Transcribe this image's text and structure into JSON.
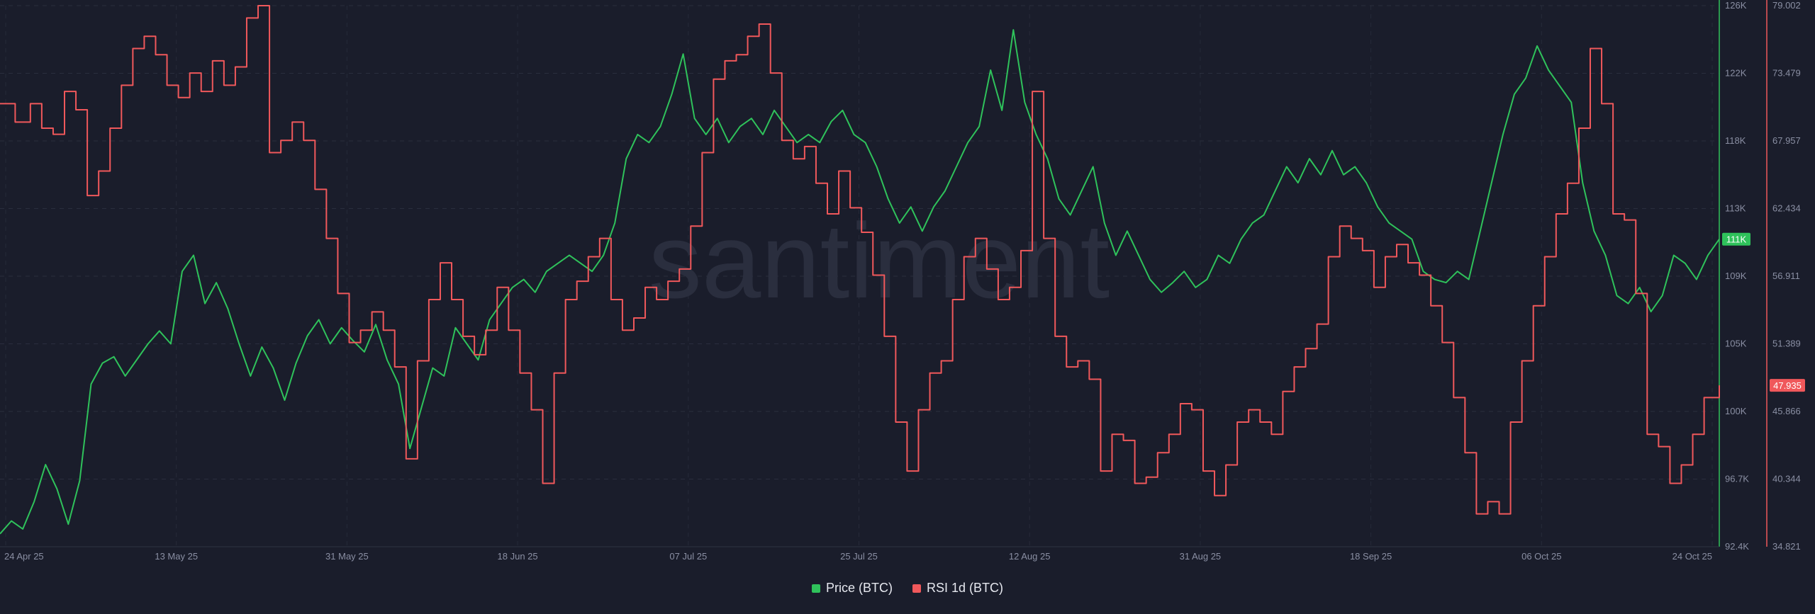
{
  "chart_data": {
    "type": "line",
    "watermark": "santiment",
    "x_ticks": [
      "24 Apr 25",
      "13 May 25",
      "31 May 25",
      "18 Jun 25",
      "07 Jul 25",
      "25 Jul 25",
      "12 Aug 25",
      "31 Aug 25",
      "18 Sep 25",
      "06 Oct 25",
      "24 Oct 25"
    ],
    "x_domain": [
      "24 Apr 25",
      "24 Oct 25"
    ],
    "grid": true,
    "legend_position": "bottom-center",
    "series": [
      {
        "name": "Price (BTC)",
        "color": "#2fc25b",
        "axis": "right-inner",
        "ylim": [
          92.4,
          126
        ],
        "unit": "K",
        "last_value_label": "111K",
        "points": [
          [
            0,
            93.2
          ],
          [
            3,
            94.0
          ],
          [
            6,
            93.5
          ],
          [
            9,
            95.2
          ],
          [
            12,
            97.5
          ],
          [
            15,
            96.0
          ],
          [
            18,
            93.8
          ],
          [
            21,
            96.5
          ],
          [
            24,
            102.5
          ],
          [
            27,
            103.8
          ],
          [
            30,
            104.2
          ],
          [
            33,
            103.0
          ],
          [
            36,
            104.0
          ],
          [
            39,
            105.0
          ],
          [
            42,
            105.8
          ],
          [
            45,
            105.0
          ],
          [
            48,
            109.5
          ],
          [
            51,
            110.5
          ],
          [
            54,
            107.5
          ],
          [
            57,
            108.8
          ],
          [
            60,
            107.2
          ],
          [
            63,
            105.0
          ],
          [
            66,
            103.0
          ],
          [
            69,
            104.8
          ],
          [
            72,
            103.5
          ],
          [
            75,
            101.5
          ],
          [
            78,
            103.8
          ],
          [
            81,
            105.5
          ],
          [
            84,
            106.5
          ],
          [
            87,
            105.0
          ],
          [
            90,
            106.0
          ],
          [
            93,
            105.2
          ],
          [
            96,
            104.5
          ],
          [
            99,
            106.2
          ],
          [
            102,
            104.0
          ],
          [
            105,
            102.5
          ],
          [
            108,
            98.5
          ],
          [
            111,
            101.0
          ],
          [
            114,
            103.5
          ],
          [
            117,
            103.0
          ],
          [
            120,
            106.0
          ],
          [
            123,
            105.0
          ],
          [
            126,
            104.0
          ],
          [
            129,
            106.5
          ],
          [
            132,
            107.5
          ],
          [
            135,
            108.5
          ],
          [
            138,
            109.0
          ],
          [
            141,
            108.2
          ],
          [
            144,
            109.5
          ],
          [
            147,
            110.0
          ],
          [
            150,
            110.5
          ],
          [
            153,
            110.0
          ],
          [
            156,
            109.5
          ],
          [
            159,
            110.5
          ],
          [
            162,
            112.5
          ],
          [
            165,
            116.5
          ],
          [
            168,
            118.0
          ],
          [
            171,
            117.5
          ],
          [
            174,
            118.5
          ],
          [
            177,
            120.5
          ],
          [
            180,
            123.0
          ],
          [
            183,
            119.0
          ],
          [
            186,
            118.0
          ],
          [
            189,
            119.0
          ],
          [
            192,
            117.5
          ],
          [
            195,
            118.5
          ],
          [
            198,
            119.0
          ],
          [
            201,
            118.0
          ],
          [
            204,
            119.5
          ],
          [
            207,
            118.5
          ],
          [
            210,
            117.5
          ],
          [
            213,
            118.0
          ],
          [
            216,
            117.5
          ],
          [
            219,
            118.8
          ],
          [
            222,
            119.5
          ],
          [
            225,
            118.0
          ],
          [
            228,
            117.5
          ],
          [
            231,
            116.0
          ],
          [
            234,
            114.0
          ],
          [
            237,
            112.5
          ],
          [
            240,
            113.5
          ],
          [
            243,
            112.0
          ],
          [
            246,
            113.5
          ],
          [
            249,
            114.5
          ],
          [
            252,
            116.0
          ],
          [
            255,
            117.5
          ],
          [
            258,
            118.5
          ],
          [
            261,
            122.0
          ],
          [
            264,
            119.5
          ],
          [
            267,
            124.5
          ],
          [
            270,
            120.0
          ],
          [
            273,
            118.0
          ],
          [
            276,
            116.5
          ],
          [
            279,
            114.0
          ],
          [
            282,
            113.0
          ],
          [
            285,
            114.5
          ],
          [
            288,
            116.0
          ],
          [
            291,
            112.5
          ],
          [
            294,
            110.5
          ],
          [
            297,
            112.0
          ],
          [
            300,
            110.5
          ],
          [
            303,
            109.0
          ],
          [
            306,
            108.2
          ],
          [
            309,
            108.8
          ],
          [
            312,
            109.5
          ],
          [
            315,
            108.5
          ],
          [
            318,
            109.0
          ],
          [
            321,
            110.5
          ],
          [
            324,
            110.0
          ],
          [
            327,
            111.5
          ],
          [
            330,
            112.5
          ],
          [
            333,
            113.0
          ],
          [
            336,
            114.5
          ],
          [
            339,
            116.0
          ],
          [
            342,
            115.0
          ],
          [
            345,
            116.5
          ],
          [
            348,
            115.5
          ],
          [
            351,
            117.0
          ],
          [
            354,
            115.5
          ],
          [
            357,
            116.0
          ],
          [
            360,
            115.0
          ],
          [
            363,
            113.5
          ],
          [
            366,
            112.5
          ],
          [
            369,
            112.0
          ],
          [
            372,
            111.5
          ],
          [
            375,
            109.5
          ],
          [
            378,
            109.0
          ],
          [
            381,
            108.8
          ],
          [
            384,
            109.5
          ],
          [
            387,
            109.0
          ],
          [
            390,
            112.0
          ],
          [
            393,
            115.0
          ],
          [
            396,
            118.0
          ],
          [
            399,
            120.5
          ],
          [
            402,
            121.5
          ],
          [
            405,
            123.5
          ],
          [
            408,
            122.0
          ],
          [
            411,
            121.0
          ],
          [
            414,
            120.0
          ],
          [
            417,
            115.0
          ],
          [
            420,
            112.0
          ],
          [
            423,
            110.5
          ],
          [
            426,
            108.0
          ],
          [
            429,
            107.5
          ],
          [
            432,
            108.5
          ],
          [
            435,
            107.0
          ],
          [
            438,
            108.0
          ],
          [
            441,
            110.5
          ],
          [
            444,
            110.0
          ],
          [
            447,
            109.0
          ],
          [
            450,
            110.5
          ],
          [
            453,
            111.5
          ]
        ]
      },
      {
        "name": "RSI 1d (BTC)",
        "color": "#f0585b",
        "axis": "right-outer",
        "ylim": [
          34.821,
          79.002
        ],
        "unit": "",
        "last_value_label": "47.935",
        "points": [
          [
            0,
            71.0
          ],
          [
            4,
            69.5
          ],
          [
            8,
            71.0
          ],
          [
            11,
            69.0
          ],
          [
            14,
            68.5
          ],
          [
            17,
            72.0
          ],
          [
            20,
            70.5
          ],
          [
            23,
            63.5
          ],
          [
            26,
            65.5
          ],
          [
            29,
            69.0
          ],
          [
            32,
            72.5
          ],
          [
            35,
            75.5
          ],
          [
            38,
            76.5
          ],
          [
            41,
            75.0
          ],
          [
            44,
            72.5
          ],
          [
            47,
            71.5
          ],
          [
            50,
            73.5
          ],
          [
            53,
            72.0
          ],
          [
            56,
            74.5
          ],
          [
            59,
            72.5
          ],
          [
            62,
            74.0
          ],
          [
            65,
            78.0
          ],
          [
            68,
            79.0
          ],
          [
            71,
            67.0
          ],
          [
            74,
            68.0
          ],
          [
            77,
            69.5
          ],
          [
            80,
            68.0
          ],
          [
            83,
            64.0
          ],
          [
            86,
            60.0
          ],
          [
            89,
            55.5
          ],
          [
            92,
            51.5
          ],
          [
            95,
            52.5
          ],
          [
            98,
            54.0
          ],
          [
            101,
            52.5
          ],
          [
            104,
            49.5
          ],
          [
            107,
            42.0
          ],
          [
            110,
            50.0
          ],
          [
            113,
            55.0
          ],
          [
            116,
            58.0
          ],
          [
            119,
            55.0
          ],
          [
            122,
            52.0
          ],
          [
            125,
            50.5
          ],
          [
            128,
            52.5
          ],
          [
            131,
            56.0
          ],
          [
            134,
            52.5
          ],
          [
            137,
            49.0
          ],
          [
            140,
            46.0
          ],
          [
            143,
            40.0
          ],
          [
            146,
            49.0
          ],
          [
            149,
            55.0
          ],
          [
            152,
            56.5
          ],
          [
            155,
            58.5
          ],
          [
            158,
            60.0
          ],
          [
            161,
            55.0
          ],
          [
            164,
            52.5
          ],
          [
            167,
            53.5
          ],
          [
            170,
            56.0
          ],
          [
            173,
            55.0
          ],
          [
            176,
            56.5
          ],
          [
            179,
            57.5
          ],
          [
            182,
            61.0
          ],
          [
            185,
            67.0
          ],
          [
            188,
            73.0
          ],
          [
            191,
            74.5
          ],
          [
            194,
            75.0
          ],
          [
            197,
            76.5
          ],
          [
            200,
            77.5
          ],
          [
            203,
            73.5
          ],
          [
            206,
            68.0
          ],
          [
            209,
            66.5
          ],
          [
            212,
            67.5
          ],
          [
            215,
            64.5
          ],
          [
            218,
            62.0
          ],
          [
            221,
            65.5
          ],
          [
            224,
            62.5
          ],
          [
            227,
            60.5
          ],
          [
            230,
            57.0
          ],
          [
            233,
            52.0
          ],
          [
            236,
            45.0
          ],
          [
            239,
            41.0
          ],
          [
            242,
            46.0
          ],
          [
            245,
            49.0
          ],
          [
            248,
            50.0
          ],
          [
            251,
            55.0
          ],
          [
            254,
            58.5
          ],
          [
            257,
            60.0
          ],
          [
            260,
            57.5
          ],
          [
            263,
            55.0
          ],
          [
            266,
            56.0
          ],
          [
            269,
            59.0
          ],
          [
            272,
            72.0
          ],
          [
            275,
            60.0
          ],
          [
            278,
            52.0
          ],
          [
            281,
            49.5
          ],
          [
            284,
            50.0
          ],
          [
            287,
            48.5
          ],
          [
            290,
            41.0
          ],
          [
            293,
            44.0
          ],
          [
            296,
            43.5
          ],
          [
            299,
            40.0
          ],
          [
            302,
            40.5
          ],
          [
            305,
            42.5
          ],
          [
            308,
            44.0
          ],
          [
            311,
            46.5
          ],
          [
            314,
            46.0
          ],
          [
            317,
            41.0
          ],
          [
            320,
            39.0
          ],
          [
            323,
            41.5
          ],
          [
            326,
            45.0
          ],
          [
            329,
            46.0
          ],
          [
            332,
            45.0
          ],
          [
            335,
            44.0
          ],
          [
            338,
            47.5
          ],
          [
            341,
            49.5
          ],
          [
            344,
            51.0
          ],
          [
            347,
            53.0
          ],
          [
            350,
            58.5
          ],
          [
            353,
            61.0
          ],
          [
            356,
            60.0
          ],
          [
            359,
            59.0
          ],
          [
            362,
            56.0
          ],
          [
            365,
            58.5
          ],
          [
            368,
            59.5
          ],
          [
            371,
            58.0
          ],
          [
            374,
            57.0
          ],
          [
            377,
            54.5
          ],
          [
            380,
            51.5
          ],
          [
            383,
            47.0
          ],
          [
            386,
            42.5
          ],
          [
            389,
            37.5
          ],
          [
            392,
            38.5
          ],
          [
            395,
            37.5
          ],
          [
            398,
            45.0
          ],
          [
            401,
            50.0
          ],
          [
            404,
            54.5
          ],
          [
            407,
            58.5
          ],
          [
            410,
            62.0
          ],
          [
            413,
            64.5
          ],
          [
            416,
            69.0
          ],
          [
            419,
            75.5
          ],
          [
            422,
            71.0
          ],
          [
            425,
            62.0
          ],
          [
            428,
            61.5
          ],
          [
            431,
            55.5
          ],
          [
            434,
            44.0
          ],
          [
            437,
            43.0
          ],
          [
            440,
            40.0
          ],
          [
            443,
            41.5
          ],
          [
            446,
            44.0
          ],
          [
            449,
            47.0
          ],
          [
            453,
            48.0
          ]
        ]
      }
    ],
    "right_inner_ticks": [
      "126K",
      "122K",
      "118K",
      "113K",
      "109K",
      "105K",
      "100K",
      "96.7K",
      "92.4K"
    ],
    "right_outer_ticks": [
      "79.002",
      "73.479",
      "67.957",
      "62.434",
      "56.911",
      "51.389",
      "45.866",
      "40.344",
      "34.821"
    ]
  }
}
